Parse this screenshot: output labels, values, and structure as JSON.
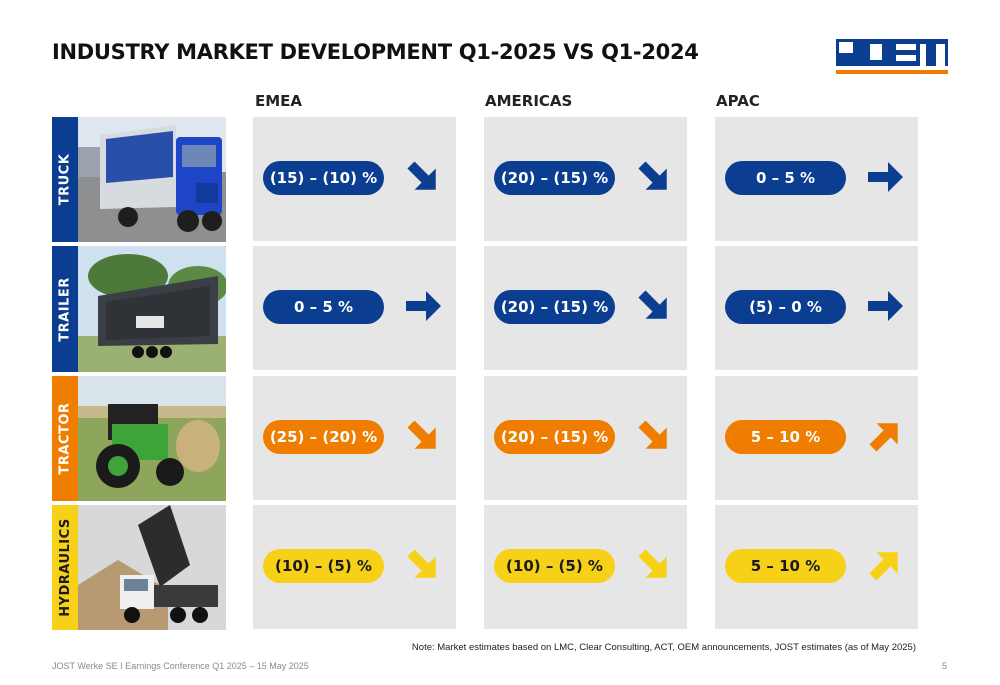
{
  "title": "INDUSTRY MARKET DEVELOPMENT Q1-2025 VS Q1-2024",
  "logo": {
    "text": "JOST",
    "color": "#0b3d91",
    "underline_color": "#ee7d00"
  },
  "regions": [
    "EMEA",
    "AMERICAS",
    "APAC"
  ],
  "colors": {
    "blue": "#0b3d91",
    "orange": "#ee7d00",
    "yellow": "#f7d117",
    "cell_bg": "#e6e6e6"
  },
  "rows": [
    {
      "label": "TRUCK",
      "photo": "truck-photo",
      "color": "blue",
      "cells": [
        {
          "value": "(15) – (10) %",
          "trend": "down"
        },
        {
          "value": "(20) – (15) %",
          "trend": "down"
        },
        {
          "value": "0 – 5 %",
          "trend": "flat"
        }
      ]
    },
    {
      "label": "TRAILER",
      "photo": "trailer-photo",
      "color": "blue",
      "cells": [
        {
          "value": "0 – 5 %",
          "trend": "flat"
        },
        {
          "value": "(20) – (15) %",
          "trend": "down"
        },
        {
          "value": "(5) – 0 %",
          "trend": "flat"
        }
      ]
    },
    {
      "label": "TRACTOR",
      "photo": "tractor-photo",
      "color": "orange",
      "cells": [
        {
          "value": "(25) – (20) %",
          "trend": "down"
        },
        {
          "value": "(20) – (15) %",
          "trend": "down"
        },
        {
          "value": "5 – 10 %",
          "trend": "up"
        }
      ]
    },
    {
      "label": "HYDRAULICS",
      "photo": "hydraulics-photo",
      "color": "yellow",
      "cells": [
        {
          "value": "(10) – (5) %",
          "trend": "down"
        },
        {
          "value": "(10) – (5) %",
          "trend": "down"
        },
        {
          "value": "5 – 10 %",
          "trend": "up"
        }
      ]
    }
  ],
  "note": "Note: Market estimates based on LMC, Clear Consulting, ACT, OEM announcements, JOST estimates (as of May 2025)",
  "footer": {
    "text": "JOST Werke SE  I  Earnings Conference Q1 2025 – 15 May 2025",
    "page": "5"
  }
}
